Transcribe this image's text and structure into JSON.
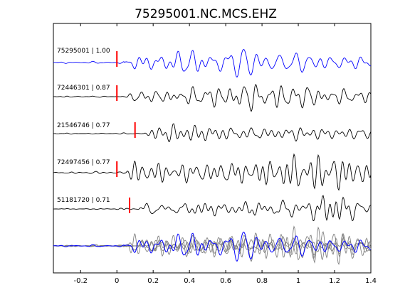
{
  "chart_data": {
    "type": "line",
    "title": "75295001.NC.MCS.EHZ",
    "xlabel": "",
    "ylabel": "",
    "xlim": [
      -0.35,
      1.4
    ],
    "xticks": [
      -0.2,
      0,
      0.2,
      0.4,
      0.6,
      0.8,
      1,
      1.2,
      1.4
    ],
    "xtick_labels": [
      "-0.2",
      "0",
      "0.2",
      "0.4",
      "0.6",
      "0.8",
      "1",
      "1.2",
      "1.4"
    ],
    "grid": false,
    "colors": {
      "reference": "#0000ff",
      "trace": "#000000",
      "overlay": "#808080",
      "pick": "#ff0000"
    },
    "series": [
      {
        "name": "75295001 | 1.00",
        "pick": 0.0,
        "role": "reference"
      },
      {
        "name": "72446301 | 0.87",
        "pick": 0.0,
        "role": "trace"
      },
      {
        "name": "21546746 | 0.77",
        "pick": 0.1,
        "role": "trace"
      },
      {
        "name": "72497456 | 0.77",
        "pick": 0.0,
        "role": "trace"
      },
      {
        "name": "51181720 | 0.71",
        "pick": 0.07,
        "role": "trace"
      }
    ]
  }
}
